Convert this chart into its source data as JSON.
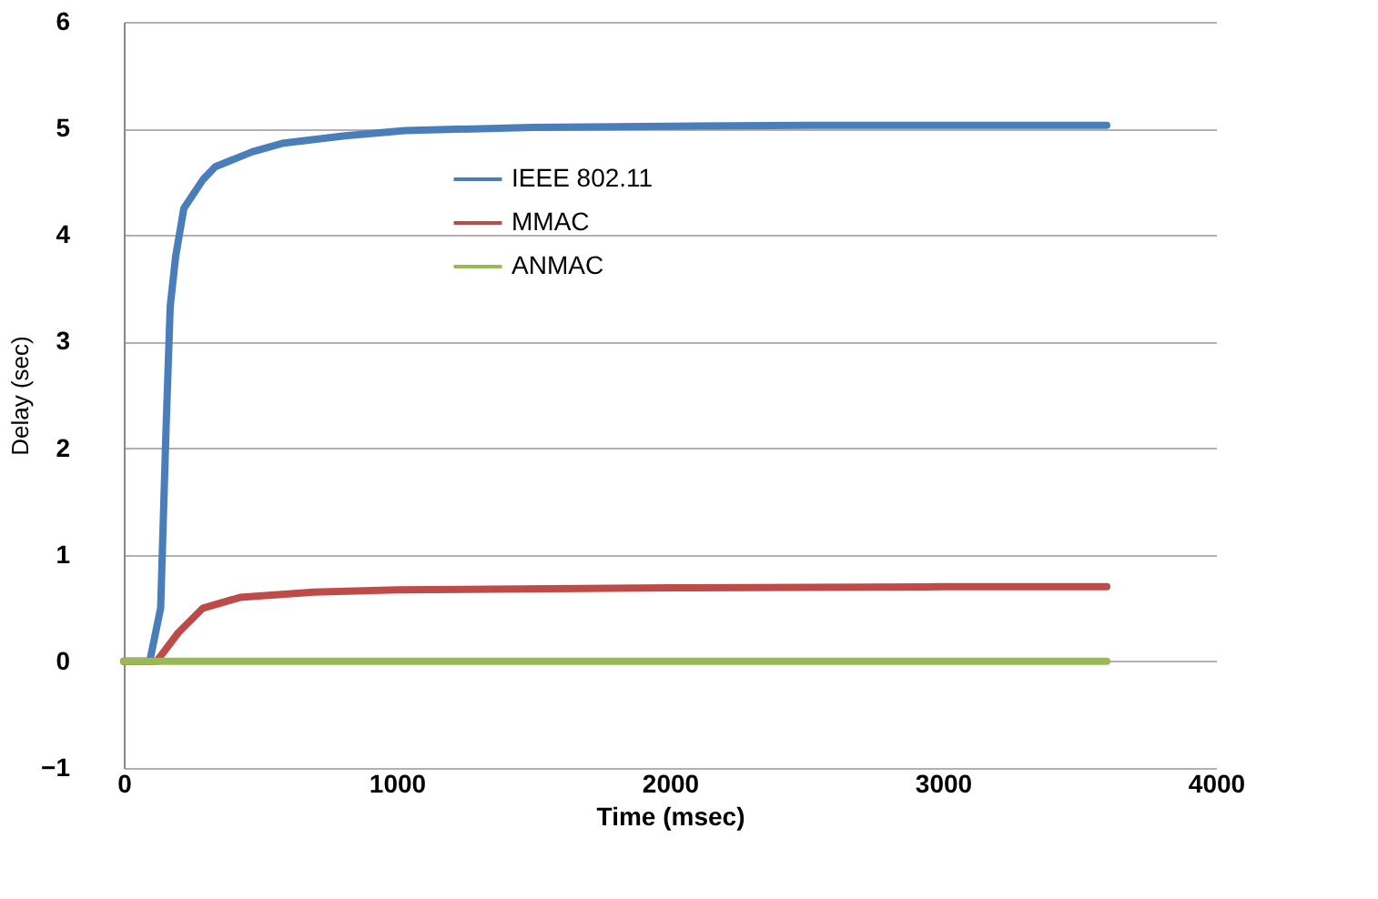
{
  "chart_data": {
    "type": "line",
    "xlabel": "Time (msec)",
    "ylabel": "Delay (sec)",
    "xlim": [
      0,
      4000
    ],
    "xticks": [
      0,
      1000,
      2000,
      3000,
      4000
    ],
    "ylim": [
      -1,
      6
    ],
    "yticks": [
      -1,
      0,
      1,
      2,
      3,
      4,
      5,
      6
    ],
    "grid": "y",
    "legend": "top",
    "marker": "none",
    "line_style": "solid",
    "series": [
      {
        "name": "IEEE 802.11",
        "color": "#4a7ebb",
        "x": [
          0,
          95,
          135,
          155,
          170,
          190,
          220,
          290,
          335,
          470,
          580,
          810,
          1030,
          1500,
          2000,
          2500,
          3000,
          3600
        ],
        "values": [
          0,
          0,
          0.5,
          2.2,
          3.33,
          3.8,
          4.25,
          4.52,
          4.64,
          4.78,
          4.86,
          4.93,
          4.98,
          5.01,
          5.02,
          5.03,
          5.03,
          5.03
        ]
      },
      {
        "name": "MMAC",
        "color": "#be4b48",
        "x": [
          0,
          120,
          200,
          290,
          425,
          695,
          1000,
          2000,
          3000,
          3600
        ],
        "values": [
          0,
          0,
          0.27,
          0.5,
          0.6,
          0.65,
          0.67,
          0.69,
          0.7,
          0.7
        ]
      },
      {
        "name": "ANMAC",
        "color": "#98b954",
        "x": [
          0,
          3600
        ],
        "values": [
          0,
          0
        ]
      }
    ]
  }
}
